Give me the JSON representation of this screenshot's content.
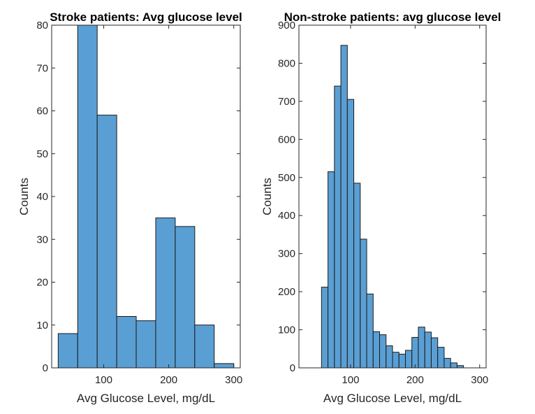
{
  "chart_data": [
    {
      "type": "bar",
      "title": "Stroke patients: Avg glucose level",
      "xlabel": "Avg Glucose Level, mg/dL",
      "ylabel": "Counts",
      "xlim": [
        20,
        310
      ],
      "ylim": [
        0,
        80
      ],
      "xticks": [
        100,
        200,
        300
      ],
      "yticks": [
        0,
        10,
        20,
        30,
        40,
        50,
        60,
        70,
        80
      ],
      "bin_edges": [
        30,
        60,
        90,
        120,
        150,
        180,
        210,
        240,
        270,
        300
      ],
      "values": [
        8,
        80,
        59,
        12,
        11,
        35,
        33,
        10,
        1
      ]
    },
    {
      "type": "bar",
      "title": "Non-stroke patients: avg glucose level",
      "xlabel": "Avg Glucose Level, mg/dL",
      "ylabel": "Counts",
      "xlim": [
        20,
        310
      ],
      "ylim": [
        0,
        900
      ],
      "xticks": [
        100,
        200,
        300
      ],
      "yticks": [
        0,
        100,
        200,
        300,
        400,
        500,
        600,
        700,
        800,
        900
      ],
      "bin_edges": [
        55,
        65,
        75,
        85,
        95,
        105,
        115,
        125,
        135,
        145,
        155,
        165,
        175,
        185,
        195,
        205,
        215,
        225,
        235,
        245,
        255,
        265,
        275
      ],
      "values": [
        212,
        515,
        740,
        847,
        705,
        485,
        338,
        194,
        95,
        87,
        58,
        41,
        36,
        46,
        80,
        107,
        94,
        79,
        54,
        25,
        13,
        6
      ]
    }
  ]
}
